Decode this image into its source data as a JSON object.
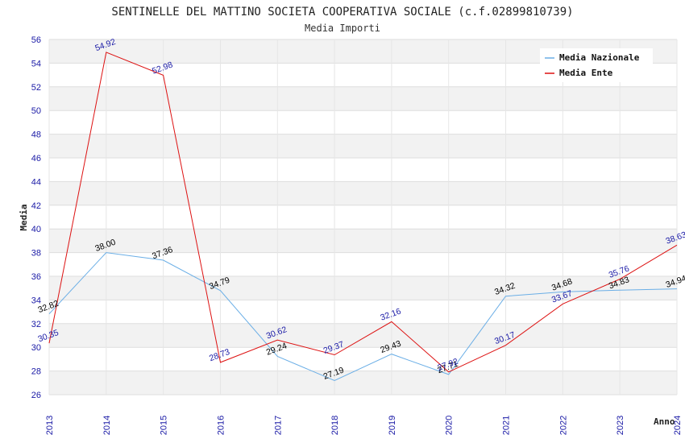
{
  "chart_data": {
    "type": "line",
    "title": "SENTINELLE DEL MATTINO SOCIETA COOPERATIVA SOCIALE (c.f.02899810739)",
    "subtitle": "Media Importi",
    "xlabel": "Anno",
    "ylabel": "Media",
    "x": [
      "2013",
      "2014",
      "2015",
      "2016",
      "2017",
      "2018",
      "2019",
      "2020",
      "2021",
      "2022",
      "2023",
      "2024"
    ],
    "ylim": [
      26,
      56
    ],
    "yticks": [
      "26",
      "28",
      "30",
      "32",
      "34",
      "36",
      "38",
      "40",
      "42",
      "44",
      "46",
      "48",
      "50",
      "52",
      "54",
      "56"
    ],
    "grid": true,
    "legend_position": "top-right",
    "series": [
      {
        "name": "Media Nazionale",
        "color": "#6aaee6",
        "label_color": "#000000",
        "values": [
          32.82,
          38.0,
          37.36,
          34.79,
          29.24,
          27.19,
          29.43,
          27.71,
          34.32,
          34.68,
          34.83,
          34.94
        ],
        "labels": [
          "32.82",
          "38.00",
          "37.36",
          "34.79",
          "29.24",
          "27.19",
          "29.43",
          "27.71",
          "34.32",
          "34.68",
          "34.83",
          "34.94"
        ]
      },
      {
        "name": "Media Ente",
        "color": "#dd1111",
        "label_color": "#1a1aa6",
        "values": [
          30.35,
          54.92,
          52.98,
          28.73,
          30.62,
          29.37,
          32.16,
          27.92,
          30.17,
          33.67,
          35.76,
          38.63
        ],
        "labels": [
          "30.35",
          "54.92",
          "52.98",
          "28.73",
          "30.62",
          "29.37",
          "32.16",
          "27.92",
          "30.17",
          "33.67",
          "35.76",
          "38.63"
        ]
      }
    ]
  }
}
